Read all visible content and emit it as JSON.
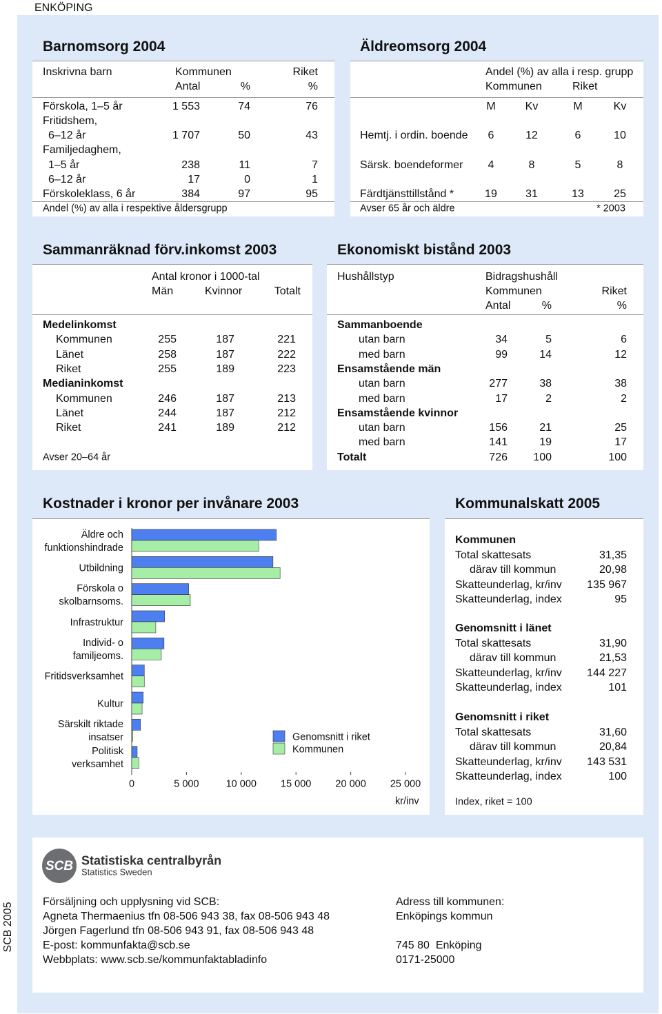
{
  "header": {
    "place": "ENKÖPING"
  },
  "side_label": "SCB 2005",
  "barnomsorg": {
    "title": "Barnomsorg 2004",
    "header_rows": [
      [
        "Inskrivna barn",
        "Kommunen",
        "Riket"
      ],
      [
        "Antal",
        "%",
        "%"
      ]
    ],
    "rows": [
      [
        "Förskola, 1–5 år",
        "1 553",
        "74",
        "76"
      ],
      [
        "Fritidshem,"
      ],
      [
        "6–12 år",
        "1 707",
        "50",
        "43"
      ],
      [
        "Familjedaghem,"
      ],
      [
        "1–5 år",
        "238",
        "11",
        "7"
      ],
      [
        "6–12 år",
        "17",
        "0",
        "1"
      ],
      [
        "Förskoleklass, 6 år",
        "384",
        "97",
        "95"
      ]
    ],
    "footnote": "Andel (%) av alla i respektive åldersgrupp"
  },
  "aldreomsorg": {
    "title": "Äldreomsorg 2004",
    "header_rows": [
      [
        "Andel (%) av alla i resp. grupp"
      ],
      [
        "Kommunen",
        "Riket"
      ],
      [
        "M",
        "Kv",
        "M",
        "Kv"
      ]
    ],
    "rows": [
      [
        "Hemtj. i ordin. boende",
        "6",
        "12",
        "6",
        "10"
      ],
      [
        "Särsk. boendeformer",
        "4",
        "8",
        "5",
        "8"
      ],
      [
        "Färdtjänsttillstånd *",
        "19",
        "31",
        "13",
        "25"
      ]
    ],
    "footnote": "Avser 65 år och äldre",
    "footnote_right": "* 2003"
  },
  "inkomst": {
    "title": "Sammanräknad förv.inkomst 2003",
    "header_rows": [
      [
        "Antal kronor i 1000-tal"
      ],
      [
        "Män",
        "Kvinnor",
        "Totalt"
      ]
    ],
    "groups": [
      {
        "name": "Medelinkomst",
        "rows": [
          [
            "Kommunen",
            "255",
            "187",
            "221"
          ],
          [
            "Länet",
            "258",
            "187",
            "222"
          ],
          [
            "Riket",
            "255",
            "189",
            "223"
          ]
        ]
      },
      {
        "name": "Medianinkomst",
        "rows": [
          [
            "Kommunen",
            "246",
            "187",
            "213"
          ],
          [
            "Länet",
            "244",
            "187",
            "212"
          ],
          [
            "Riket",
            "241",
            "189",
            "212"
          ]
        ]
      }
    ],
    "footnote": "Avser 20–64 år"
  },
  "bistand": {
    "title": "Ekonomiskt bistånd 2003",
    "header_rows": [
      [
        "Hushållstyp",
        "Bidragshushåll"
      ],
      [
        "Kommunen",
        "Riket"
      ],
      [
        "Antal",
        "%",
        "%"
      ]
    ],
    "groups": [
      {
        "name": "Sammanboende",
        "rows": [
          [
            "utan barn",
            "34",
            "5",
            "6"
          ],
          [
            "med barn",
            "99",
            "14",
            "12"
          ]
        ]
      },
      {
        "name": "Ensamstående män",
        "rows": [
          [
            "utan barn",
            "277",
            "38",
            "38"
          ],
          [
            "med barn",
            "17",
            "2",
            "2"
          ]
        ]
      },
      {
        "name": "Ensamstående kvinnor",
        "rows": [
          [
            "utan barn",
            "156",
            "21",
            "25"
          ],
          [
            "med barn",
            "141",
            "19",
            "17"
          ]
        ]
      }
    ],
    "total": [
      "Totalt",
      "726",
      "100",
      "100"
    ]
  },
  "chart_data": {
    "type": "bar",
    "orientation": "horizontal",
    "title": "Kostnader i kronor per invånare 2003",
    "categories": [
      "Äldre och\nfunktionshindrade",
      "Utbildning",
      "Förskola o\nskolbarnsoms.",
      "Infrastruktur",
      "Individ- o\nfamiljeoms.",
      "Fritidsverksamhet",
      "Kultur",
      "Särskilt riktade\ninsatser",
      "Politisk\nverksamhet"
    ],
    "series": [
      {
        "name": "Genomsnitt i riket",
        "color": "#4d7ff0",
        "values": [
          13200,
          12900,
          5200,
          3000,
          2950,
          1150,
          1050,
          800,
          500
        ]
      },
      {
        "name": "Kommunen",
        "color": "#a6eea6",
        "values": [
          11600,
          13550,
          5350,
          2200,
          2700,
          1150,
          950,
          100,
          650
        ]
      }
    ],
    "xlim": [
      0,
      25000
    ],
    "xticks": [
      0,
      {
        "value": 5000,
        "label": "5 000"
      },
      {
        "value": 10000,
        "label": "10 000"
      },
      {
        "value": 15000,
        "label": "15 000"
      },
      {
        "value": 20000,
        "label": "20 000"
      },
      {
        "value": 25000,
        "label": "25 000"
      }
    ],
    "x_label": "kr/inv"
  },
  "skatt": {
    "title": "Kommunalskatt 2005",
    "sections": [
      {
        "name": "Kommunen",
        "rows": [
          [
            "Total skattesats",
            "31,35"
          ],
          [
            "därav till kommun",
            "20,98"
          ],
          [
            "Skatteunderlag, kr/inv",
            "135 967"
          ],
          [
            "Skatteunderlag, index",
            "95"
          ]
        ]
      },
      {
        "name": "Genomsnitt i länet",
        "rows": [
          [
            "Total skattesats",
            "31,90"
          ],
          [
            "därav till kommun",
            "21,53"
          ],
          [
            "Skatteunderlag, kr/inv",
            "144 227"
          ],
          [
            "Skatteunderlag, index",
            "101"
          ]
        ]
      },
      {
        "name": "Genomsnitt i riket",
        "rows": [
          [
            "Total skattesats",
            "31,60"
          ],
          [
            "därav till kommun",
            "20,84"
          ],
          [
            "Skatteunderlag, kr/inv",
            "143 531"
          ],
          [
            "Skatteunderlag, index",
            "100"
          ]
        ]
      }
    ],
    "footnote": "Index, riket = 100"
  },
  "footer": {
    "logo": {
      "mark": "SCB",
      "name": "Statistiska centralbyrån",
      "subtitle": "Statistics Sweden"
    },
    "left": [
      "Försäljning och upplysning vid SCB:",
      "Agneta Thermaenius tfn 08-506 943 38, fax 08-506 943 48",
      "Jörgen Fagerlund tfn 08-506 943 91, fax 08-506 943 48",
      "E-post: kommunfakta@scb.se",
      "Webbplats: www.scb.se/kommunfaktabladinfo"
    ],
    "right": [
      "Adress till kommunen:",
      "Enköpings kommun",
      "745 80  Enköping",
      "0171-25000"
    ]
  }
}
